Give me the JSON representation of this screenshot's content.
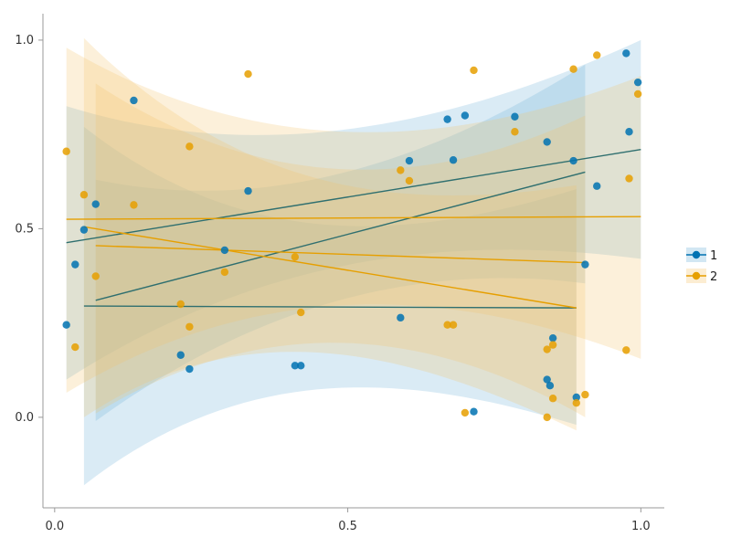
{
  "chart_data": {
    "type": "scatter",
    "title": "",
    "xlabel": "",
    "ylabel": "",
    "xlim": [
      -0.02,
      1.04
    ],
    "ylim": [
      -0.24,
      1.07
    ],
    "x_ticks": [
      0.0,
      0.5,
      1.0
    ],
    "x_tick_labels": [
      "0.0",
      "0.5",
      "1.0"
    ],
    "y_ticks": [
      0.0,
      0.5,
      1.0
    ],
    "y_tick_labels": [
      "0.0",
      "0.5",
      "1.0"
    ],
    "grid": false,
    "legend_position": "right",
    "series": [
      {
        "name": "1",
        "color": "#0072b2",
        "points": [
          [
            0.02,
            0.245
          ],
          [
            0.035,
            0.405
          ],
          [
            0.05,
            0.497
          ],
          [
            0.07,
            0.565
          ],
          [
            0.135,
            0.84
          ],
          [
            0.215,
            0.165
          ],
          [
            0.23,
            0.128
          ],
          [
            0.29,
            0.443
          ],
          [
            0.33,
            0.6
          ],
          [
            0.41,
            0.137
          ],
          [
            0.42,
            0.137
          ],
          [
            0.59,
            0.264
          ],
          [
            0.605,
            0.68
          ],
          [
            0.67,
            0.79
          ],
          [
            0.68,
            0.682
          ],
          [
            0.7,
            0.8
          ],
          [
            0.715,
            0.015
          ],
          [
            0.785,
            0.797
          ],
          [
            0.84,
            0.73
          ],
          [
            0.84,
            0.1
          ],
          [
            0.845,
            0.084
          ],
          [
            0.85,
            0.21
          ],
          [
            0.885,
            0.68
          ],
          [
            0.89,
            0.053
          ],
          [
            0.905,
            0.405
          ],
          [
            0.925,
            0.613
          ],
          [
            0.975,
            0.965
          ],
          [
            0.98,
            0.757
          ],
          [
            0.995,
            0.888
          ]
        ],
        "fits": [
          {
            "x": [
              0.02,
              1.0
            ],
            "y": [
              0.463,
              0.71
            ],
            "lower": [
              0.1,
              0.42
            ],
            "upper": [
              0.825,
              1.0
            ]
          },
          {
            "x": [
              0.07,
              0.905
            ],
            "y": [
              0.31,
              0.65
            ],
            "lower": [
              -0.01,
              0.355
            ],
            "upper": [
              0.63,
              0.935
            ]
          },
          {
            "x": [
              0.05,
              0.89
            ],
            "y": [
              0.295,
              0.29
            ],
            "lower": [
              -0.18,
              -0.02
            ],
            "upper": [
              0.77,
              0.605
            ]
          }
        ]
      },
      {
        "name": "2",
        "color": "#e69f00",
        "points": [
          [
            0.02,
            0.705
          ],
          [
            0.035,
            0.186
          ],
          [
            0.05,
            0.59
          ],
          [
            0.07,
            0.374
          ],
          [
            0.135,
            0.563
          ],
          [
            0.215,
            0.3
          ],
          [
            0.23,
            0.718
          ],
          [
            0.23,
            0.24
          ],
          [
            0.29,
            0.385
          ],
          [
            0.33,
            0.91
          ],
          [
            0.41,
            0.425
          ],
          [
            0.42,
            0.278
          ],
          [
            0.59,
            0.655
          ],
          [
            0.605,
            0.627
          ],
          [
            0.67,
            0.245
          ],
          [
            0.68,
            0.245
          ],
          [
            0.7,
            0.012
          ],
          [
            0.715,
            0.92
          ],
          [
            0.785,
            0.757
          ],
          [
            0.84,
            0.18
          ],
          [
            0.84,
            0.0
          ],
          [
            0.85,
            0.192
          ],
          [
            0.85,
            0.05
          ],
          [
            0.885,
            0.923
          ],
          [
            0.89,
            0.038
          ],
          [
            0.905,
            0.06
          ],
          [
            0.925,
            0.96
          ],
          [
            0.975,
            0.178
          ],
          [
            0.98,
            0.633
          ],
          [
            0.995,
            0.857
          ]
        ],
        "fits": [
          {
            "x": [
              0.02,
              1.0
            ],
            "y": [
              0.525,
              0.532
            ],
            "lower": [
              0.065,
              0.155
            ],
            "upper": [
              0.98,
              0.905
            ]
          },
          {
            "x": [
              0.05,
              0.89
            ],
            "y": [
              0.505,
              0.29
            ],
            "lower": [
              0.0,
              -0.035
            ],
            "upper": [
              1.005,
              0.615
            ]
          },
          {
            "x": [
              0.07,
              0.905
            ],
            "y": [
              0.455,
              0.41
            ],
            "lower": [
              0.01,
              0.0
            ],
            "upper": [
              0.885,
              0.8
            ]
          }
        ]
      }
    ]
  }
}
